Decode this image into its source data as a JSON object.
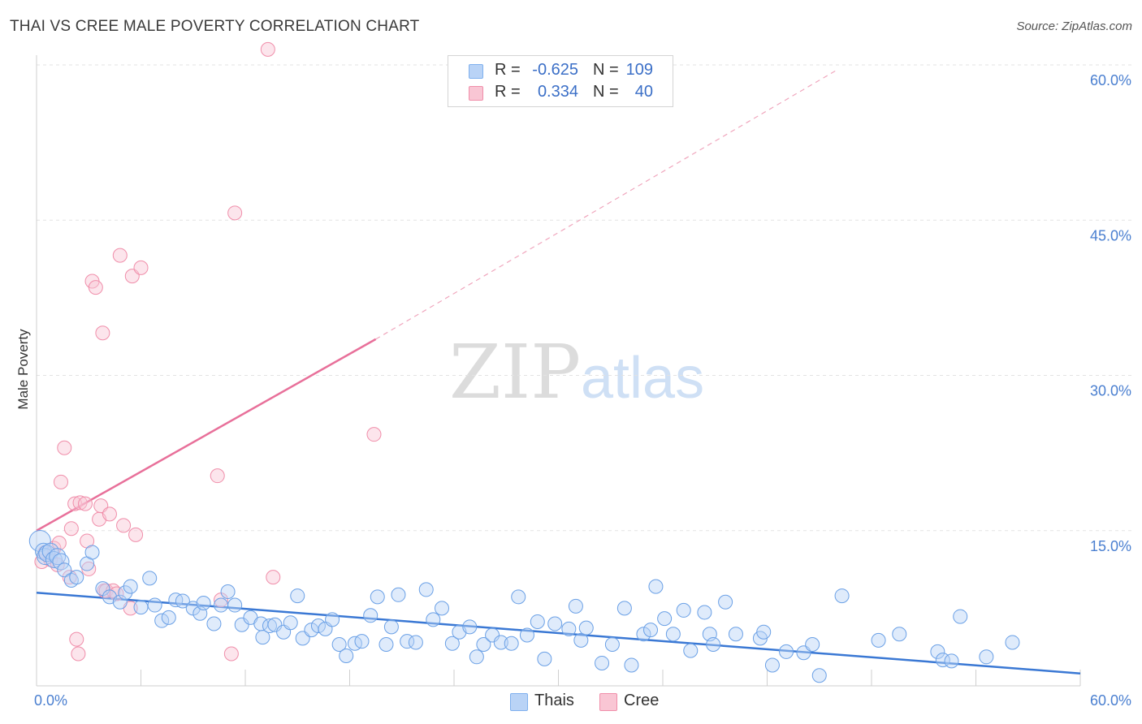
{
  "header": {
    "title": "THAI VS CREE MALE POVERTY CORRELATION CHART",
    "source": "Source: ZipAtlas.com"
  },
  "watermark": {
    "zip": "ZIP",
    "atlas": "atlas"
  },
  "legend": {
    "rows": [
      {
        "name": "Thais",
        "r_label": "R =",
        "r_value": "-0.625",
        "n_label": "N =",
        "n_value": "109",
        "color": "#7fb0ee",
        "fill": "#b9d3f6"
      },
      {
        "name": "Cree",
        "r_label": "R =",
        "r_value": "0.334",
        "n_label": "N =",
        "n_value": "40",
        "color": "#f08eaa",
        "fill": "#f9c6d4"
      }
    ]
  },
  "colors": {
    "thai_stroke": "#6aa0e6",
    "thai_line": "#3a78d4",
    "cree_stroke": "#f08eaa",
    "cree_line": "#e8709a",
    "grid": "#e3e3e3",
    "axis_text": "#4a7fd0"
  },
  "chart_data": {
    "type": "scatter",
    "title": "THAI VS CREE MALE POVERTY CORRELATION CHART",
    "xlabel": "",
    "ylabel": "Male Poverty",
    "xlim": [
      0,
      60
    ],
    "ylim": [
      0,
      60
    ],
    "x_tick_labels": [
      "0.0%",
      "60.0%"
    ],
    "y_tick_labels": [
      "15.0%",
      "30.0%",
      "45.0%",
      "60.0%"
    ],
    "y_ticks": [
      15,
      30,
      45,
      60
    ],
    "series": [
      {
        "name": "Thais",
        "r": -0.625,
        "n": 109,
        "trend": {
          "x": [
            0,
            60
          ],
          "y": [
            9.0,
            1.2
          ]
        },
        "points": [
          [
            0.2,
            14.0
          ],
          [
            0.4,
            13.0
          ],
          [
            0.5,
            12.5
          ],
          [
            0.6,
            12.8
          ],
          [
            0.8,
            13.0
          ],
          [
            1.0,
            12.2
          ],
          [
            1.2,
            12.5
          ],
          [
            1.4,
            12.0
          ],
          [
            1.6,
            11.2
          ],
          [
            2.0,
            10.2
          ],
          [
            2.3,
            10.5
          ],
          [
            2.9,
            11.8
          ],
          [
            3.2,
            12.9
          ],
          [
            3.8,
            9.4
          ],
          [
            4.2,
            8.6
          ],
          [
            4.8,
            8.1
          ],
          [
            5.1,
            9.0
          ],
          [
            5.4,
            9.6
          ],
          [
            6.0,
            7.6
          ],
          [
            6.5,
            10.4
          ],
          [
            6.8,
            7.8
          ],
          [
            7.2,
            6.3
          ],
          [
            7.6,
            6.6
          ],
          [
            8.0,
            8.3
          ],
          [
            8.4,
            8.2
          ],
          [
            9.0,
            7.5
          ],
          [
            9.4,
            7.0
          ],
          [
            9.6,
            8.0
          ],
          [
            10.2,
            6.0
          ],
          [
            10.6,
            7.8
          ],
          [
            11.0,
            9.1
          ],
          [
            11.4,
            7.8
          ],
          [
            11.8,
            5.9
          ],
          [
            12.3,
            6.6
          ],
          [
            12.9,
            6.0
          ],
          [
            13.0,
            4.7
          ],
          [
            13.4,
            5.8
          ],
          [
            13.7,
            5.9
          ],
          [
            14.2,
            5.2
          ],
          [
            14.6,
            6.1
          ],
          [
            15.0,
            8.7
          ],
          [
            15.3,
            4.6
          ],
          [
            15.8,
            5.4
          ],
          [
            16.2,
            5.8
          ],
          [
            16.6,
            5.5
          ],
          [
            17.0,
            6.4
          ],
          [
            17.4,
            4.0
          ],
          [
            17.8,
            2.9
          ],
          [
            18.3,
            4.1
          ],
          [
            18.7,
            4.3
          ],
          [
            19.2,
            6.8
          ],
          [
            19.6,
            8.6
          ],
          [
            20.1,
            4.0
          ],
          [
            20.4,
            5.7
          ],
          [
            20.8,
            8.8
          ],
          [
            21.3,
            4.3
          ],
          [
            21.8,
            4.2
          ],
          [
            22.4,
            9.3
          ],
          [
            22.8,
            6.4
          ],
          [
            23.3,
            7.5
          ],
          [
            23.9,
            4.1
          ],
          [
            24.3,
            5.2
          ],
          [
            24.9,
            5.7
          ],
          [
            25.3,
            2.8
          ],
          [
            25.7,
            4.0
          ],
          [
            26.2,
            4.9
          ],
          [
            26.7,
            4.2
          ],
          [
            27.3,
            4.1
          ],
          [
            27.7,
            8.6
          ],
          [
            28.2,
            4.9
          ],
          [
            28.8,
            6.2
          ],
          [
            29.2,
            2.6
          ],
          [
            29.8,
            6.0
          ],
          [
            30.6,
            5.5
          ],
          [
            31.0,
            7.7
          ],
          [
            31.3,
            4.4
          ],
          [
            31.6,
            5.6
          ],
          [
            32.5,
            2.2
          ],
          [
            33.1,
            4.0
          ],
          [
            33.8,
            7.5
          ],
          [
            34.2,
            2.0
          ],
          [
            34.9,
            5.0
          ],
          [
            35.3,
            5.4
          ],
          [
            35.6,
            9.6
          ],
          [
            36.1,
            6.5
          ],
          [
            36.6,
            5.0
          ],
          [
            37.2,
            7.3
          ],
          [
            37.6,
            3.4
          ],
          [
            38.4,
            7.1
          ],
          [
            38.7,
            5.0
          ],
          [
            38.9,
            4.0
          ],
          [
            39.6,
            8.1
          ],
          [
            40.2,
            5.0
          ],
          [
            41.6,
            4.6
          ],
          [
            41.8,
            5.2
          ],
          [
            42.3,
            2.0
          ],
          [
            43.1,
            3.3
          ],
          [
            44.1,
            3.2
          ],
          [
            44.6,
            4.0
          ],
          [
            45.0,
            1.0
          ],
          [
            46.3,
            8.7
          ],
          [
            48.4,
            4.4
          ],
          [
            49.6,
            5.0
          ],
          [
            51.8,
            3.3
          ],
          [
            52.1,
            2.5
          ],
          [
            52.6,
            2.4
          ],
          [
            53.1,
            6.7
          ],
          [
            54.6,
            2.8
          ],
          [
            56.1,
            4.2
          ]
        ]
      },
      {
        "name": "Cree",
        "r": 0.334,
        "n": 40,
        "trend": {
          "x": [
            0,
            19.5
          ],
          "y": [
            15.0,
            33.5
          ],
          "dashed_to": [
            46.0,
            59.5
          ]
        },
        "points": [
          [
            0.3,
            12.0
          ],
          [
            0.5,
            12.9
          ],
          [
            0.8,
            12.2
          ],
          [
            1.0,
            13.3
          ],
          [
            1.2,
            11.7
          ],
          [
            1.3,
            13.8
          ],
          [
            1.4,
            19.7
          ],
          [
            1.6,
            23.0
          ],
          [
            1.9,
            10.5
          ],
          [
            2.0,
            15.2
          ],
          [
            2.2,
            17.6
          ],
          [
            2.3,
            4.5
          ],
          [
            2.4,
            3.1
          ],
          [
            2.5,
            17.7
          ],
          [
            2.8,
            17.6
          ],
          [
            2.9,
            14.0
          ],
          [
            3.0,
            11.3
          ],
          [
            3.2,
            39.1
          ],
          [
            3.4,
            38.5
          ],
          [
            3.6,
            16.1
          ],
          [
            3.7,
            17.4
          ],
          [
            3.8,
            34.1
          ],
          [
            3.9,
            9.2
          ],
          [
            4.0,
            9.2
          ],
          [
            4.2,
            16.6
          ],
          [
            4.4,
            9.2
          ],
          [
            4.6,
            8.9
          ],
          [
            4.8,
            41.6
          ],
          [
            5.0,
            15.5
          ],
          [
            5.4,
            7.5
          ],
          [
            5.5,
            39.6
          ],
          [
            5.7,
            14.6
          ],
          [
            6.0,
            40.4
          ],
          [
            10.4,
            20.3
          ],
          [
            10.6,
            8.3
          ],
          [
            11.2,
            3.1
          ],
          [
            11.4,
            45.7
          ],
          [
            13.3,
            61.5
          ],
          [
            13.6,
            10.5
          ],
          [
            19.4,
            24.3
          ]
        ]
      }
    ]
  }
}
